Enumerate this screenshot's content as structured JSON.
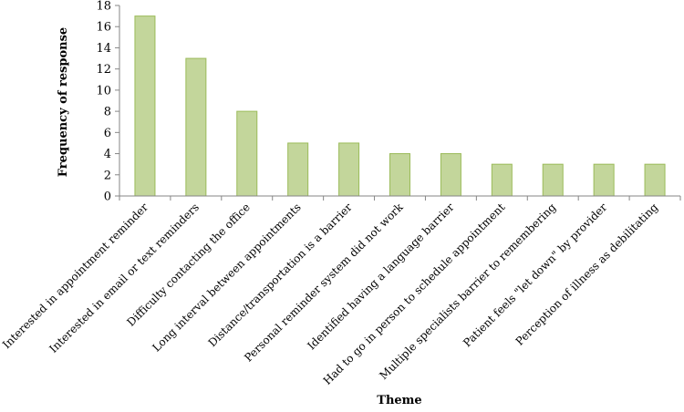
{
  "chart_data": {
    "type": "bar",
    "title": "",
    "xlabel": "Theme",
    "ylabel": "Frequency of response",
    "ylim": [
      0,
      18
    ],
    "yticks": [
      0,
      2,
      4,
      6,
      8,
      10,
      12,
      14,
      16,
      18
    ],
    "grid": false,
    "legend": "none",
    "categories": [
      "Interested in appointment reminder",
      "Interested in email or text reminders",
      "Difficulty contacting the office",
      "Long interval between appointments",
      "Distance/transportation is a barrier",
      "Personal reminder system did not work",
      "Identified having a language barrier",
      "Had to go in person to schedule appointment",
      "Multiple specialists barrier to remembering",
      "Patient feels \"let down\" by provider",
      "Perception of illness as debilitating"
    ],
    "values": [
      17,
      13,
      8,
      5,
      5,
      4,
      4,
      3,
      3,
      3,
      3
    ],
    "colors": {
      "bar_fill": "#c3d69b",
      "bar_stroke": "#9bbb59",
      "axis": "#868686"
    }
  }
}
